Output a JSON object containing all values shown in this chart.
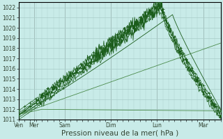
{
  "xlabel": "Pression niveau de la mer( hPa )",
  "bg_color": "#c8ebe8",
  "grid_color": "#a8ccc8",
  "ylim": [
    1011,
    1022.5
  ],
  "yticks": [
    1011,
    1012,
    1013,
    1014,
    1015,
    1016,
    1017,
    1018,
    1019,
    1020,
    1021,
    1022
  ],
  "day_labels": [
    "Ven",
    "Mer",
    "Sam",
    "Dim",
    "Lun",
    "Mar"
  ],
  "day_positions": [
    0,
    16,
    48,
    96,
    144,
    192
  ],
  "dark_green": "#1a5c1a",
  "light_green": "#4a8a4a",
  "total_hours": 210,
  "xlabel_fontsize": 7.5,
  "tick_fontsize": 5.5
}
